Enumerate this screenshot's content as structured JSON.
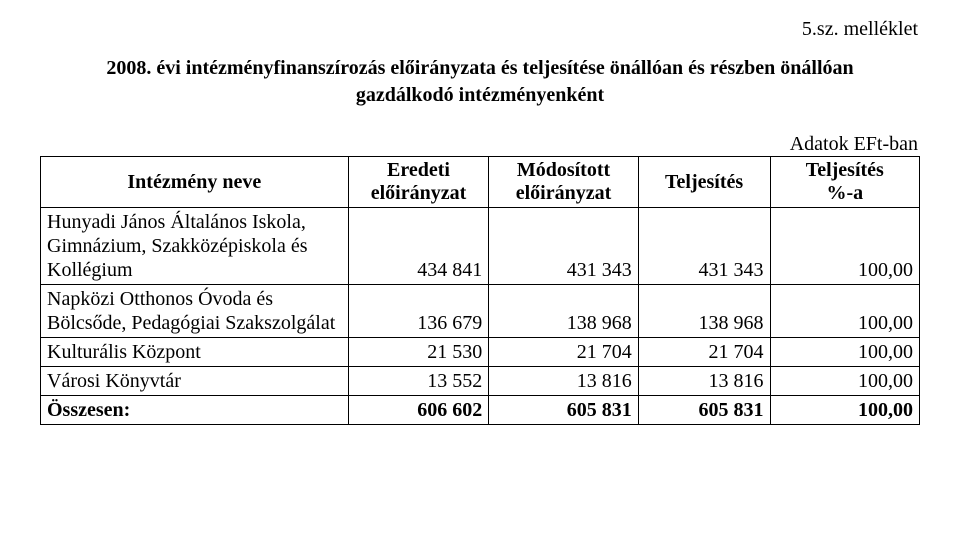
{
  "annex_label": "5.sz. melléklet",
  "title_line1": "2008. évi intézményfinanszírozás előirányzata és teljesítése önállóan és részben önállóan",
  "title_line2": "gazdálkodó intézményenként",
  "unit_label": "Adatok EFt-ban",
  "table": {
    "columns": [
      "Intézmény neve",
      "Eredeti előirányzat",
      "Módosított előirányzat",
      "Teljesítés",
      "Teljesítés %-a"
    ],
    "col_widths_pct": [
      35,
      16,
      17,
      15,
      17
    ],
    "header_line_breaks": {
      "1": [
        "Eredeti",
        "előirányzat"
      ],
      "2": [
        "Módosított",
        "előirányzat"
      ],
      "4": [
        "Teljesítés",
        "%-a"
      ]
    },
    "rows": [
      {
        "name": "Hunyadi János Általános Iskola, Gimnázium, Szakközépiskola és Kollégium",
        "values": [
          "434 841",
          "431 343",
          "431 343",
          "100,00"
        ]
      },
      {
        "name": "Napközi Otthonos Óvoda és Bölcsőde, Pedagógiai Szakszolgálat",
        "values": [
          "136 679",
          "138 968",
          "138 968",
          "100,00"
        ]
      },
      {
        "name": "Kulturális Központ",
        "values": [
          "21 530",
          "21 704",
          "21 704",
          "100,00"
        ]
      },
      {
        "name": "Városi Könyvtár",
        "values": [
          "13 552",
          "13 816",
          "13 816",
          "100,00"
        ]
      }
    ],
    "total": {
      "name": "Összesen:",
      "values": [
        "606 602",
        "605 831",
        "605 831",
        "100,00"
      ]
    },
    "border_color": "#000000",
    "background_color": "#ffffff",
    "font_size_pt": 15,
    "number_align": "right",
    "name_align": "left",
    "header_font_weight": "bold",
    "total_font_weight": "bold"
  }
}
